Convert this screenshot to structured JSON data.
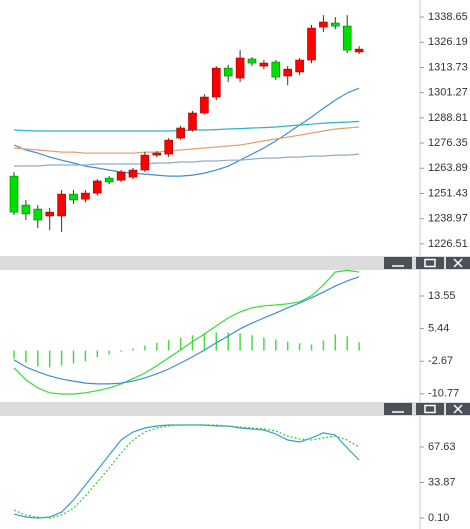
{
  "chart_data": [
    {
      "type": "candlestick",
      "up_color": "#ff0000",
      "down_color": "#00e000",
      "open": [
        1260.0,
        1245.7,
        1243.7,
        1240.3,
        1240.3,
        1251.1,
        1248.6,
        1251.6,
        1259.0,
        1258.0,
        1259.5,
        1263.0,
        1270.4,
        1270.9,
        1278.8,
        1282.8,
        1291.2,
        1299.1,
        1313.4,
        1308.5,
        1317.9,
        1314.4,
        1316.4,
        1309.5,
        1311.5,
        1317.4,
        1333.7,
        1335.7,
        1334.2,
        1321.4
      ],
      "high": [
        1262.0,
        1248.2,
        1245.7,
        1244.2,
        1253.1,
        1253.1,
        1253.1,
        1258.5,
        1260.0,
        1263.0,
        1264.0,
        1272.0,
        1272.4,
        1278.8,
        1285.0,
        1292.2,
        1300.5,
        1314.4,
        1315.0,
        1322.3,
        1318.9,
        1317.4,
        1317.4,
        1314.4,
        1318.4,
        1334.7,
        1339.6,
        1338.6,
        1339.6,
        1324.3
      ],
      "low": [
        1240.8,
        1238.3,
        1234.3,
        1233.3,
        1232.4,
        1246.2,
        1247.0,
        1250.5,
        1256.0,
        1257.0,
        1258.5,
        1262.0,
        1269.4,
        1269.4,
        1278.0,
        1282.0,
        1290.5,
        1297.6,
        1306.5,
        1306.5,
        1314.4,
        1312.9,
        1307.5,
        1305.0,
        1310.0,
        1315.9,
        1331.2,
        1332.7,
        1320.9,
        1320.4
      ],
      "close": [
        1242.2,
        1241.3,
        1238.3,
        1242.2,
        1251.1,
        1248.2,
        1251.6,
        1257.6,
        1257.1,
        1262.0,
        1263.0,
        1270.4,
        1271.4,
        1277.8,
        1283.8,
        1291.2,
        1299.1,
        1313.4,
        1309.5,
        1318.4,
        1315.9,
        1315.9,
        1309.0,
        1312.9,
        1317.4,
        1333.2,
        1336.2,
        1334.2,
        1322.3,
        1322.8
      ],
      "series": [
        {
          "color": "#3f8fd2",
          "values": [
            1275.4,
            1272.9,
            1271.4,
            1269.4,
            1267.9,
            1266.5,
            1264.9,
            1264.0,
            1263.0,
            1262.0,
            1261.5,
            1261.0,
            1260.5,
            1260.0,
            1260.0,
            1260.5,
            1261.5,
            1263.0,
            1264.9,
            1267.9,
            1270.9,
            1273.9,
            1277.4,
            1281.3,
            1285.3,
            1289.2,
            1293.6,
            1297.6,
            1301.1,
            1303.5
          ]
        },
        {
          "color": "#2ab4c4",
          "values": [
            1282.8,
            1282.5,
            1282.3,
            1282.3,
            1282.3,
            1282.3,
            1282.3,
            1282.3,
            1282.3,
            1282.3,
            1282.3,
            1282.3,
            1282.3,
            1282.3,
            1282.5,
            1282.8,
            1282.8,
            1283.0,
            1283.3,
            1283.5,
            1283.8,
            1284.0,
            1284.3,
            1284.8,
            1285.3,
            1285.7,
            1286.2,
            1286.5,
            1286.7,
            1287.0
          ]
        },
        {
          "color": "#e8a070",
          "values": [
            1273.9,
            1273.4,
            1272.9,
            1272.4,
            1271.9,
            1271.9,
            1271.4,
            1271.4,
            1271.4,
            1271.4,
            1271.4,
            1271.9,
            1271.9,
            1272.4,
            1272.9,
            1273.4,
            1273.9,
            1274.4,
            1274.9,
            1275.4,
            1276.4,
            1277.4,
            1278.4,
            1279.3,
            1280.3,
            1281.3,
            1282.3,
            1283.3,
            1283.8,
            1284.3
          ]
        },
        {
          "color": "#93abc9",
          "values": [
            1265.0,
            1265.0,
            1265.0,
            1265.5,
            1265.5,
            1265.5,
            1265.5,
            1266.0,
            1266.0,
            1266.0,
            1266.0,
            1266.0,
            1266.5,
            1266.5,
            1267.0,
            1267.0,
            1267.5,
            1267.5,
            1267.9,
            1267.9,
            1268.4,
            1268.9,
            1268.9,
            1269.4,
            1269.4,
            1269.9,
            1269.9,
            1270.4,
            1270.4,
            1270.9
          ]
        }
      ],
      "ylim": [
        1221.0,
        1346.1
      ],
      "yticks": [
        1338.65,
        1326.19,
        1313.73,
        1301.27,
        1288.81,
        1276.35,
        1263.89,
        1251.43,
        1238.97,
        1226.51
      ]
    },
    {
      "type": "line",
      "series": [
        {
          "kind": "histogram",
          "color": "#44dd44",
          "values": [
            -2,
            -3,
            -4,
            -4.2,
            -3.7,
            -3.2,
            -2.7,
            -1.7,
            -1,
            -0.3,
            0.5,
            1.2,
            1.9,
            2.6,
            3.2,
            3.8,
            4.3,
            4.5,
            4.5,
            4.3,
            3.8,
            3.2,
            2.7,
            2.2,
            1.8,
            1.5,
            2.5,
            4,
            3.5,
            2
          ]
        },
        {
          "color": "#33dd33",
          "values": [
            -4.3,
            -7.3,
            -9.3,
            -10.5,
            -10.8,
            -10.8,
            -10.5,
            -10.0,
            -9.3,
            -8.3,
            -7.0,
            -5.6,
            -3.8,
            -1.8,
            0.2,
            2.2,
            4.1,
            6.1,
            8.1,
            9.6,
            10.6,
            11.1,
            11.3,
            11.6,
            12.1,
            13.6,
            16.3,
            19.5,
            19.9,
            19.5
          ]
        },
        {
          "color": "#3f8fd2",
          "values": [
            -2.3,
            -4.1,
            -5.3,
            -6.3,
            -7.1,
            -7.6,
            -8.1,
            -8.3,
            -8.3,
            -8.1,
            -7.6,
            -6.8,
            -5.8,
            -4.6,
            -3.1,
            -1.6,
            0.1,
            1.9,
            3.6,
            5.4,
            6.8,
            8.1,
            9.3,
            10.6,
            11.8,
            13.1,
            14.5,
            16.0,
            17.3,
            18.3
          ]
        }
      ],
      "ylim": [
        -12.3,
        20.0
      ],
      "yticks": [
        13.55,
        5.44,
        -2.67,
        -10.77
      ]
    },
    {
      "type": "line",
      "series": [
        {
          "color": "#3a9fc4",
          "values": [
            3.9,
            1.1,
            0.1,
            1.1,
            5.8,
            17.2,
            31.5,
            45.7,
            60.0,
            74.3,
            81.9,
            85.7,
            87.6,
            88.5,
            88.5,
            88.5,
            88.5,
            87.6,
            87.6,
            85.7,
            84.7,
            83.8,
            80.0,
            74.3,
            72.4,
            76.2,
            81.0,
            79.0,
            66.7,
            55.3
          ]
        },
        {
          "color": "#33cc33",
          "dashed": true,
          "values": [
            7.7,
            2.9,
            1.1,
            0.1,
            2.9,
            9.6,
            21.0,
            34.3,
            47.7,
            61.9,
            74.3,
            81.9,
            85.7,
            87.6,
            88.5,
            88.5,
            88.5,
            88.5,
            87.6,
            86.6,
            85.7,
            84.7,
            82.8,
            78.1,
            75.2,
            74.3,
            76.2,
            78.1,
            74.3,
            67.6
          ]
        }
      ],
      "ylim": [
        -10.3,
        95.2
      ],
      "yticks": [
        67.63,
        33.87,
        {
          "value": 0.1,
          "label": "0.10"
        }
      ]
    }
  ]
}
